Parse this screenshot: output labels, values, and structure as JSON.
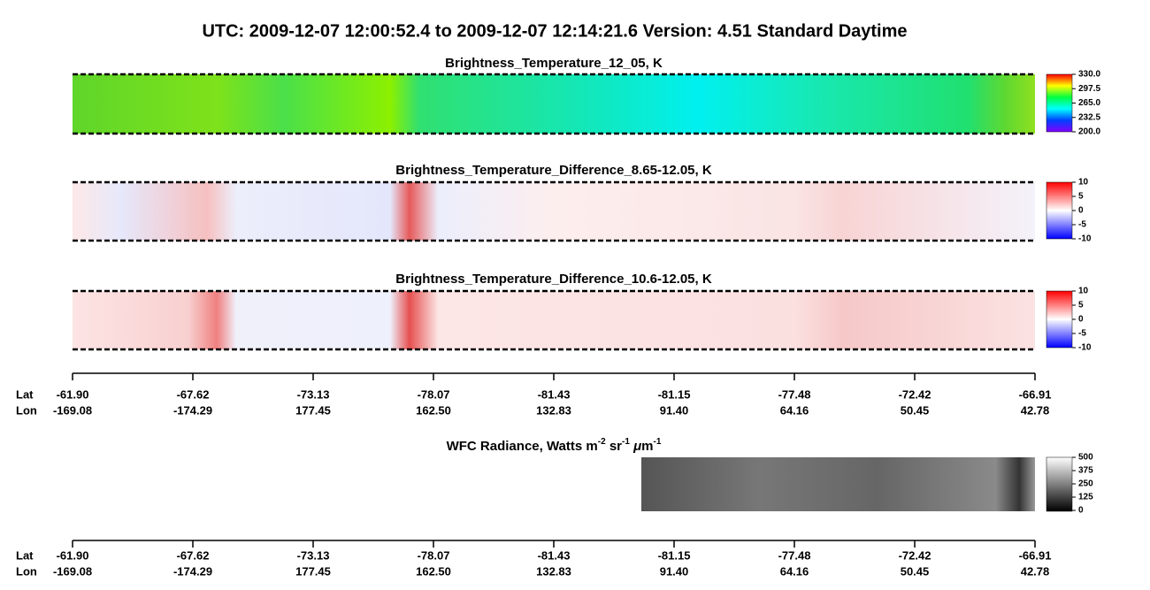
{
  "title": "UTC:  2009-12-07   12:00:52.4  to  2009-12-07   12:14:21.6    Version: 4.51  Standard Daytime",
  "panels": [
    {
      "title": "Brightness_Temperature_12_05, K",
      "colorbar_ticks": [
        "330.0",
        "297.5",
        "265.0",
        "232.5",
        "200.0"
      ]
    },
    {
      "title": "Brightness_Temperature_Difference_8.65-12.05, K",
      "colorbar_ticks": [
        "10",
        "5",
        "0",
        "-5",
        "-10"
      ]
    },
    {
      "title": "Brightness_Temperature_Difference_10.6-12.05, K",
      "colorbar_ticks": [
        "10",
        "5",
        "0",
        "-5",
        "-10"
      ]
    }
  ],
  "wfc": {
    "title_parts": [
      "WFC Radiance, Watts m",
      "-2",
      " sr",
      "-1",
      " μ",
      "m",
      "-1"
    ],
    "colorbar_ticks": [
      "500",
      "375",
      "250",
      "125",
      "0"
    ]
  },
  "axis": {
    "lat_label": "Lat",
    "lon_label": "Lon",
    "lat": [
      "-61.90",
      "-67.62",
      "-73.13",
      "-78.07",
      "-81.43",
      "-81.15",
      "-77.48",
      "-72.42",
      "-66.91"
    ],
    "lon": [
      "-169.08",
      "-174.29",
      "177.45",
      "162.50",
      "132.83",
      "91.40",
      "64.16",
      "50.45",
      "42.78"
    ]
  }
}
